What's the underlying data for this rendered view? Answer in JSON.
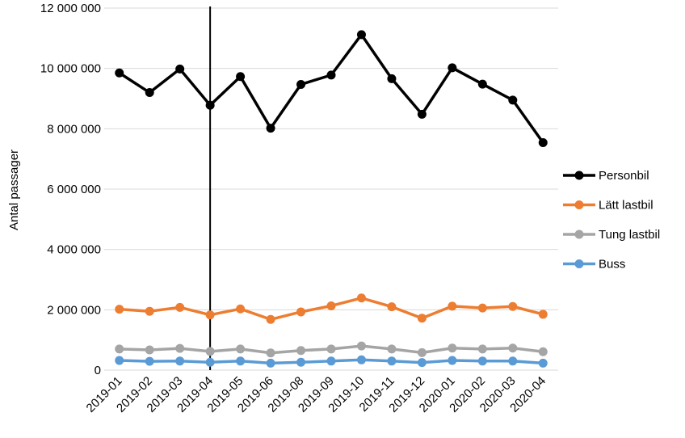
{
  "chart_data": {
    "type": "line",
    "title": "",
    "xlabel": "",
    "ylabel": "Antal passager",
    "ylim": [
      0,
      12000000
    ],
    "yticks": [
      0,
      2000000,
      4000000,
      6000000,
      8000000,
      10000000,
      12000000
    ],
    "ytick_labels": [
      "0",
      "2 000 000",
      "4 000 000",
      "6 000 000",
      "8 000 000",
      "10 000 000",
      "12 000 000"
    ],
    "grid": "horizontal",
    "legend_position": "right",
    "marker_line_category": "2019-04",
    "categories": [
      "2019-01",
      "2019-02",
      "2019-03",
      "2019-04",
      "2019-05",
      "2019-06",
      "2019-08",
      "2019-09",
      "2019-10",
      "2019-11",
      "2019-12",
      "2020-01",
      "2020-02",
      "2020-03",
      "2020-04"
    ],
    "series": [
      {
        "name": "Personbil",
        "color": "#000000",
        "values": [
          9850000,
          9200000,
          9980000,
          8780000,
          9730000,
          8020000,
          9470000,
          9780000,
          11120000,
          9660000,
          8480000,
          10020000,
          9480000,
          8950000,
          7540000
        ]
      },
      {
        "name": "Lätt lastbil",
        "color": "#ED7D31",
        "values": [
          2020000,
          1950000,
          2080000,
          1830000,
          2030000,
          1680000,
          1930000,
          2130000,
          2390000,
          2100000,
          1720000,
          2120000,
          2060000,
          2110000,
          1850000
        ]
      },
      {
        "name": "Tung lastbil",
        "color": "#A5A5A5",
        "values": [
          700000,
          670000,
          720000,
          620000,
          700000,
          570000,
          650000,
          700000,
          800000,
          700000,
          580000,
          730000,
          700000,
          730000,
          610000
        ]
      },
      {
        "name": "Buss",
        "color": "#5B9BD5",
        "values": [
          320000,
          290000,
          300000,
          260000,
          300000,
          230000,
          260000,
          300000,
          340000,
          300000,
          250000,
          320000,
          300000,
          300000,
          230000
        ]
      }
    ]
  }
}
